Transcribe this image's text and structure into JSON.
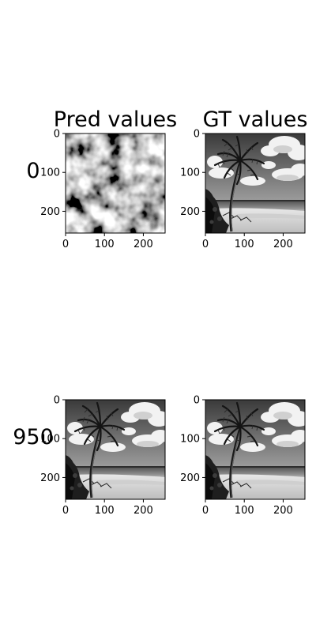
{
  "chart_data": {
    "type": "image-grid",
    "columns": [
      "Pred values",
      "GT values"
    ],
    "rows": [
      {
        "label": "0",
        "panels": [
          {
            "column": "Pred values",
            "content": "noise"
          },
          {
            "column": "GT values",
            "content": "beach-palm"
          }
        ]
      },
      {
        "label": "950",
        "panels": [
          {
            "column": "Pred values",
            "content": "beach-palm"
          },
          {
            "column": "GT values",
            "content": "beach-palm"
          }
        ]
      }
    ],
    "xticks": [
      0,
      100,
      200
    ],
    "yticks": [
      0,
      100,
      200
    ],
    "xlim": [
      0,
      256
    ],
    "ylim": [
      256,
      0
    ],
    "colormap": "gray"
  }
}
